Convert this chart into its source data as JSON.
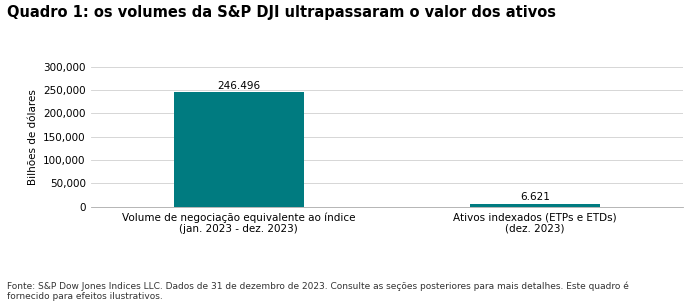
{
  "title": "Quadro 1: os volumes da S&P DJI ultrapassaram o valor dos ativos",
  "categories": [
    "Volume de negociação equivalente ao índice\n(jan. 2023 - dez. 2023)",
    "Ativos indexados (ETPs e ETDs)\n(dez. 2023)"
  ],
  "values": [
    246496,
    6621
  ],
  "bar_labels": [
    "246.496",
    "6.621"
  ],
  "bar_color": "#007b80",
  "ylabel": "Bilhões de dólares",
  "ylim": [
    0,
    300000
  ],
  "yticks": [
    0,
    50000,
    100000,
    150000,
    200000,
    250000,
    300000
  ],
  "ytick_labels": [
    "0",
    "50,000",
    "100,000",
    "150,000",
    "200,000",
    "250,000",
    "300,000"
  ],
  "footnote": "Fonte: S&P Dow Jones Indices LLC. Dados de 31 de dezembro de 2023. Consulte as seções posteriores para mais detalhes. Este quadro é\nfornecido para efeitos ilustrativos.",
  "background_color": "#ffffff",
  "title_fontsize": 10.5,
  "label_fontsize": 7.5,
  "ylabel_fontsize": 7.5,
  "tick_fontsize": 7.5,
  "footnote_fontsize": 6.5,
  "bar_label_fontsize": 7.5
}
